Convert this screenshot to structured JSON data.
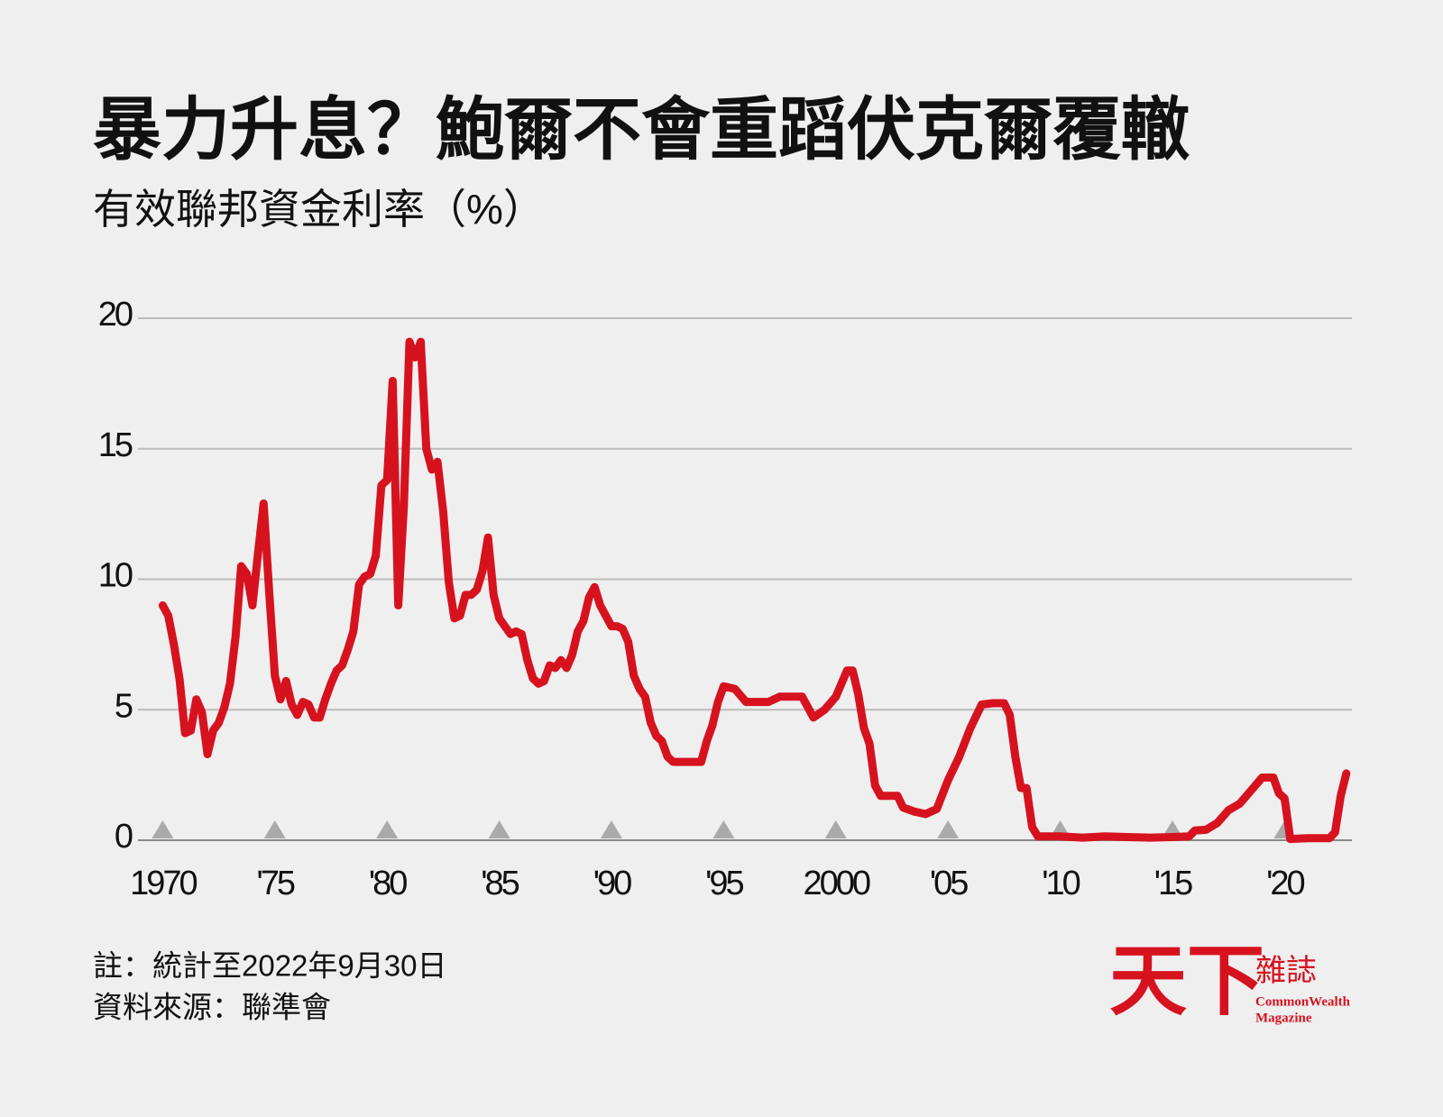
{
  "chart_data": {
    "type": "line",
    "title": "暴力升息？鮑爾不會重蹈伏克爾覆轍",
    "subtitle": "有效聯邦資金利率（%）",
    "notes": [
      "註：統計至2022年9月30日",
      "資料來源：聯準會"
    ],
    "brand": {
      "name": "天下",
      "suffix": "雜誌",
      "english": [
        "CommonWealth",
        "Magazine"
      ]
    },
    "x": [
      1970.0,
      1970.25,
      1970.5,
      1970.75,
      1971.0,
      1971.25,
      1971.5,
      1971.75,
      1972.0,
      1972.25,
      1972.5,
      1972.75,
      1973.0,
      1973.25,
      1973.5,
      1973.75,
      1974.0,
      1974.25,
      1974.5,
      1974.75,
      1975.0,
      1975.25,
      1975.5,
      1975.75,
      1976.0,
      1976.25,
      1976.5,
      1976.75,
      1977.0,
      1977.25,
      1977.5,
      1977.75,
      1978.0,
      1978.25,
      1978.5,
      1978.75,
      1979.0,
      1979.25,
      1979.5,
      1979.75,
      1980.0,
      1980.25,
      1980.5,
      1980.75,
      1981.0,
      1981.25,
      1981.5,
      1981.75,
      1982.0,
      1982.25,
      1982.5,
      1982.75,
      1983.0,
      1983.25,
      1983.5,
      1983.75,
      1984.0,
      1984.25,
      1984.5,
      1984.75,
      1985.0,
      1985.25,
      1985.5,
      1985.75,
      1986.0,
      1986.25,
      1986.5,
      1986.75,
      1987.0,
      1987.25,
      1987.5,
      1987.75,
      1988.0,
      1988.25,
      1988.5,
      1988.75,
      1989.0,
      1989.25,
      1989.5,
      1989.75,
      1990.0,
      1990.25,
      1990.5,
      1990.75,
      1991.0,
      1991.25,
      1991.5,
      1991.75,
      1992.0,
      1992.25,
      1992.5,
      1992.75,
      1993.0,
      1993.5,
      1994.0,
      1994.25,
      1994.5,
      1994.75,
      1995.0,
      1995.5,
      1996.0,
      1996.5,
      1997.0,
      1997.5,
      1998.0,
      1998.5,
      1998.75,
      1999.0,
      1999.5,
      2000.0,
      2000.5,
      2000.75,
      2001.0,
      2001.25,
      2001.5,
      2001.75,
      2002.0,
      2002.75,
      2003.0,
      2003.5,
      2004.0,
      2004.5,
      2005.0,
      2005.5,
      2006.0,
      2006.5,
      2007.0,
      2007.5,
      2007.75,
      2008.0,
      2008.25,
      2008.5,
      2008.75,
      2009.0,
      2010.0,
      2011.0,
      2012.0,
      2013.0,
      2014.0,
      2015.0,
      2015.75,
      2016.0,
      2016.5,
      2017.0,
      2017.5,
      2018.0,
      2018.5,
      2019.0,
      2019.5,
      2019.75,
      2020.0,
      2020.25,
      2021.0,
      2022.0,
      2022.25,
      2022.5,
      2022.75
    ],
    "series": [
      {
        "color": "#d7121f",
        "values": [
          9.0,
          8.6,
          7.5,
          6.2,
          4.1,
          4.2,
          5.4,
          4.9,
          3.3,
          4.2,
          4.5,
          5.1,
          6.0,
          7.8,
          10.5,
          10.2,
          9.0,
          11.0,
          12.9,
          9.5,
          6.3,
          5.4,
          6.1,
          5.2,
          4.8,
          5.3,
          5.2,
          4.7,
          4.7,
          5.4,
          6.0,
          6.5,
          6.7,
          7.3,
          8.0,
          9.8,
          10.1,
          10.2,
          10.9,
          13.6,
          13.8,
          17.6,
          9.0,
          12.8,
          19.1,
          18.5,
          19.1,
          15.0,
          14.2,
          14.5,
          12.6,
          9.9,
          8.5,
          8.6,
          9.4,
          9.4,
          9.6,
          10.3,
          11.6,
          9.4,
          8.5,
          8.2,
          7.9,
          8.0,
          7.9,
          6.9,
          6.2,
          6.0,
          6.1,
          6.7,
          6.6,
          6.9,
          6.6,
          7.1,
          8.0,
          8.4,
          9.3,
          9.7,
          9.0,
          8.6,
          8.2,
          8.2,
          8.1,
          7.6,
          6.3,
          5.8,
          5.5,
          4.5,
          4.0,
          3.8,
          3.2,
          3.0,
          3.0,
          3.0,
          3.0,
          3.8,
          4.4,
          5.3,
          5.9,
          5.8,
          5.3,
          5.3,
          5.3,
          5.5,
          5.5,
          5.5,
          5.1,
          4.7,
          5.0,
          5.5,
          6.5,
          6.5,
          5.6,
          4.3,
          3.7,
          2.1,
          1.7,
          1.7,
          1.25,
          1.1,
          1.0,
          1.2,
          2.3,
          3.2,
          4.3,
          5.2,
          5.25,
          5.25,
          4.8,
          3.2,
          2.0,
          2.0,
          0.5,
          0.15,
          0.15,
          0.1,
          0.15,
          0.12,
          0.1,
          0.12,
          0.15,
          0.37,
          0.4,
          0.66,
          1.15,
          1.4,
          1.9,
          2.4,
          2.4,
          1.8,
          1.6,
          0.05,
          0.08,
          0.08,
          0.3,
          1.7,
          2.56
        ]
      }
    ],
    "xlim": [
      1968.9,
      2023.0
    ],
    "ylim": [
      0,
      20
    ],
    "xticks": [
      1970,
      {
        "value": 1975,
        "label": "'75"
      },
      {
        "value": 1980,
        "label": "'80"
      },
      {
        "value": 1985,
        "label": "'85"
      },
      {
        "value": 1990,
        "label": "'90"
      },
      {
        "value": 1995,
        "label": "'95"
      },
      2000,
      {
        "value": 2005,
        "label": "'05"
      },
      {
        "value": 2010,
        "label": "'10"
      },
      {
        "value": 2015,
        "label": "'15"
      },
      {
        "value": 2020,
        "label": "'20"
      }
    ],
    "yticks": [
      0,
      5,
      10,
      15,
      20
    ],
    "grid": true
  }
}
